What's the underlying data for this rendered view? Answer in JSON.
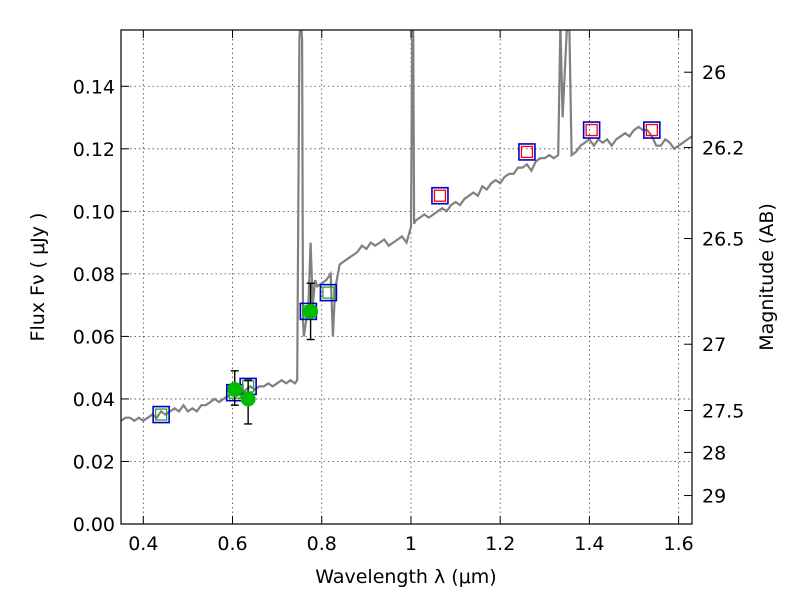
{
  "chart_data": {
    "type": "line",
    "xlabel": "Wavelength  λ (μm)",
    "ylabel": "Flux  Fν  ( μJy )",
    "ylabel_right": "Magnitude (AB)",
    "xlim": [
      0.35,
      1.63
    ],
    "ylim": [
      0.0,
      0.158
    ],
    "grid": true,
    "x_ticks": [
      0.4,
      0.6,
      0.8,
      1.0,
      1.2,
      1.4,
      1.6
    ],
    "x_tick_labels": [
      "0.4",
      "0.6",
      "0.8",
      "1",
      "1.2",
      "1.4",
      "1.6"
    ],
    "y_ticks": [
      0.0,
      0.02,
      0.04,
      0.06,
      0.08,
      0.1,
      0.12,
      0.14
    ],
    "y_tick_labels": [
      "0.00",
      "0.02",
      "0.04",
      "0.06",
      "0.08",
      "0.10",
      "0.12",
      "0.14"
    ],
    "right_ticks": [
      {
        "label": "26",
        "flux": 0.1445
      },
      {
        "label": "26.2",
        "flux": 0.1204
      },
      {
        "label": "26.5",
        "flux": 0.0913
      },
      {
        "label": "27",
        "flux": 0.0575
      },
      {
        "label": "27.5",
        "flux": 0.0363
      },
      {
        "label": "28",
        "flux": 0.0229
      },
      {
        "label": "29",
        "flux": 0.0091
      }
    ],
    "series": [
      {
        "type": "line",
        "color": "#808080",
        "x": [
          0.35,
          0.36,
          0.37,
          0.38,
          0.39,
          0.4,
          0.41,
          0.42,
          0.43,
          0.44,
          0.45,
          0.46,
          0.47,
          0.48,
          0.49,
          0.5,
          0.51,
          0.52,
          0.53,
          0.54,
          0.55,
          0.56,
          0.57,
          0.58,
          0.59,
          0.6,
          0.61,
          0.62,
          0.63,
          0.64,
          0.65,
          0.66,
          0.67,
          0.68,
          0.69,
          0.7,
          0.71,
          0.72,
          0.73,
          0.74,
          0.745,
          0.75,
          0.752,
          0.754,
          0.756,
          0.758,
          0.76,
          0.77,
          0.775,
          0.78,
          0.785,
          0.79,
          0.8,
          0.81,
          0.82,
          0.825,
          0.83,
          0.84,
          0.85,
          0.86,
          0.87,
          0.88,
          0.89,
          0.9,
          0.91,
          0.92,
          0.93,
          0.94,
          0.95,
          0.96,
          0.97,
          0.98,
          0.99,
          1.0,
          1.003,
          1.005,
          1.007,
          1.01,
          1.02,
          1.03,
          1.04,
          1.05,
          1.06,
          1.07,
          1.08,
          1.09,
          1.1,
          1.11,
          1.12,
          1.13,
          1.14,
          1.15,
          1.16,
          1.17,
          1.18,
          1.19,
          1.2,
          1.21,
          1.22,
          1.23,
          1.24,
          1.25,
          1.26,
          1.27,
          1.28,
          1.29,
          1.3,
          1.31,
          1.32,
          1.33,
          1.335,
          1.34,
          1.35,
          1.355,
          1.36,
          1.37,
          1.38,
          1.39,
          1.4,
          1.41,
          1.42,
          1.43,
          1.44,
          1.45,
          1.46,
          1.47,
          1.48,
          1.49,
          1.5,
          1.51,
          1.52,
          1.53,
          1.54,
          1.55,
          1.56,
          1.57,
          1.58,
          1.59,
          1.6,
          1.61,
          1.62,
          1.63
        ],
        "y": [
          0.033,
          0.034,
          0.034,
          0.033,
          0.034,
          0.033,
          0.034,
          0.035,
          0.034,
          0.036,
          0.035,
          0.036,
          0.037,
          0.036,
          0.038,
          0.036,
          0.037,
          0.036,
          0.038,
          0.038,
          0.039,
          0.04,
          0.039,
          0.04,
          0.041,
          0.042,
          0.041,
          0.042,
          0.043,
          0.044,
          0.043,
          0.044,
          0.044,
          0.045,
          0.044,
          0.045,
          0.046,
          0.045,
          0.046,
          0.045,
          0.046,
          0.155,
          0.16,
          0.16,
          0.155,
          0.065,
          0.06,
          0.07,
          0.09,
          0.07,
          0.078,
          0.076,
          0.077,
          0.078,
          0.08,
          0.06,
          0.075,
          0.083,
          0.084,
          0.085,
          0.086,
          0.087,
          0.089,
          0.088,
          0.09,
          0.089,
          0.09,
          0.091,
          0.089,
          0.09,
          0.091,
          0.092,
          0.09,
          0.095,
          0.16,
          0.16,
          0.096,
          0.097,
          0.098,
          0.099,
          0.098,
          0.099,
          0.1,
          0.101,
          0.1,
          0.102,
          0.103,
          0.102,
          0.104,
          0.105,
          0.106,
          0.105,
          0.108,
          0.107,
          0.109,
          0.11,
          0.109,
          0.111,
          0.112,
          0.112,
          0.114,
          0.114,
          0.115,
          0.113,
          0.116,
          0.117,
          0.117,
          0.118,
          0.117,
          0.118,
          0.16,
          0.13,
          0.16,
          0.16,
          0.118,
          0.119,
          0.121,
          0.122,
          0.123,
          0.121,
          0.123,
          0.122,
          0.123,
          0.121,
          0.123,
          0.124,
          0.125,
          0.124,
          0.126,
          0.127,
          0.126,
          0.126,
          0.124,
          0.121,
          0.121,
          0.123,
          0.122,
          0.12,
          0.121,
          0.122,
          0.123,
          0.124
        ]
      },
      {
        "type": "open-square",
        "stroke": "#0000cc",
        "x": [
          0.44,
          0.605,
          0.635,
          0.77,
          0.815,
          1.065,
          1.26,
          1.405,
          1.54
        ],
        "y": [
          0.035,
          0.042,
          0.044,
          0.068,
          0.074,
          0.105,
          0.119,
          0.126,
          0.126
        ]
      },
      {
        "type": "open-square-inner",
        "stroke_by_point": [
          "#2ca02c",
          "#2ca02c",
          "#2ca02c",
          "#2ca02c",
          "#2ca02c",
          "#ff0000",
          "#ff0000",
          "#ff0000",
          "#ff0000"
        ],
        "x": [
          0.44,
          0.605,
          0.635,
          0.77,
          0.815,
          1.065,
          1.26,
          1.405,
          1.54
        ],
        "y": [
          0.035,
          0.042,
          0.044,
          0.068,
          0.074,
          0.105,
          0.119,
          0.126,
          0.126
        ]
      },
      {
        "type": "scatter-errorbar",
        "color": "#00bb00",
        "x": [
          0.605,
          0.635,
          0.775
        ],
        "y": [
          0.043,
          0.04,
          0.068
        ],
        "yerr_low": [
          0.005,
          0.008,
          0.009
        ],
        "yerr_high": [
          0.006,
          0.006,
          0.009
        ]
      }
    ]
  }
}
